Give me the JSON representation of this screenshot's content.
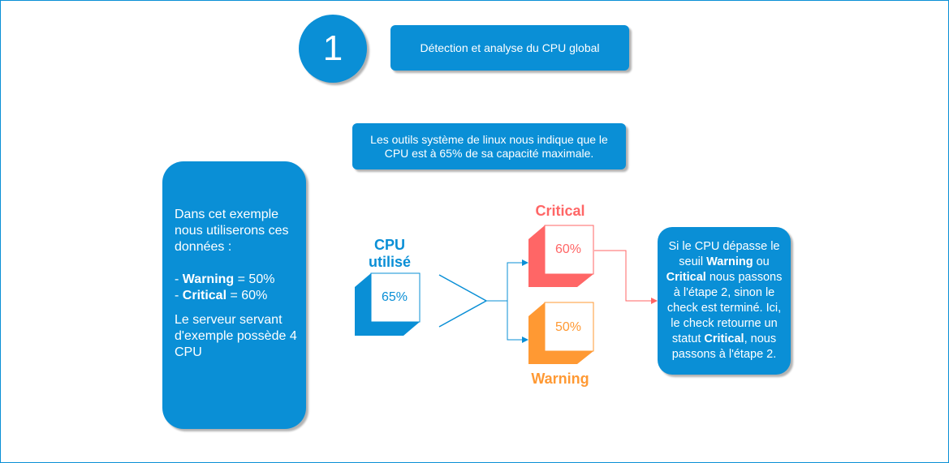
{
  "step": {
    "number": "1",
    "title": "Détection et analyse du CPU global"
  },
  "info": "Les outils système de linux nous indique que le CPU est à 65% de sa capacité maximale.",
  "example": {
    "intro": "Dans cet exemple nous utiliserons ces données :",
    "warning_label": "Warning",
    "warning_value": " = 50%",
    "critical_label": "Critical",
    "critical_value": " = 60%",
    "server": "Le serveur servant d'exemple possède 4 CPU"
  },
  "cpu": {
    "label": "CPU utilisé",
    "value": "65%"
  },
  "critical": {
    "label": "Critical",
    "value": "60%"
  },
  "warning": {
    "label": "Warning",
    "value": "50%"
  },
  "result": {
    "p1": "Si le CPU dépasse le seuil ",
    "b1": "Warning",
    "p2": " ou ",
    "b2": "Critical",
    "p3": " nous passons à l'étape 2, sinon le check est terminé. Ici, le check retourne un statut ",
    "b3": "Critical",
    "p4": ", nous passons à l'étape 2."
  },
  "colors": {
    "blue": "#0a8fd6",
    "critical": "#ff6666",
    "warning": "#ff9933"
  }
}
